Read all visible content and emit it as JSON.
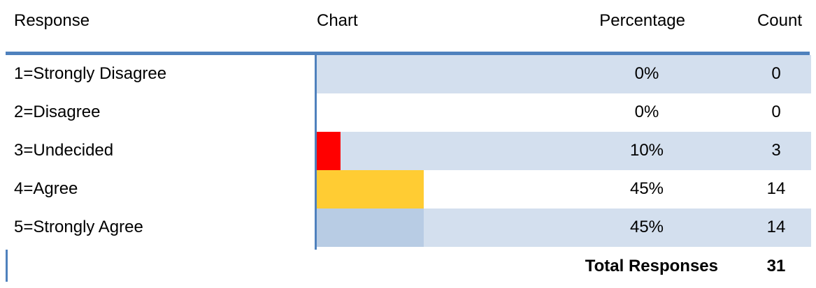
{
  "headers": {
    "response": "Response",
    "chart": "Chart",
    "percentage": "Percentage",
    "count": "Count"
  },
  "chart_data": {
    "type": "bar",
    "categories": [
      "1=Strongly Disagree",
      "2=Disagree",
      "3=Undecided",
      "4=Agree",
      "5=Strongly Agree"
    ],
    "percentages": [
      0,
      0,
      10,
      45,
      45
    ],
    "percentage_labels": [
      "0%",
      "0%",
      "10%",
      "45%",
      "45%"
    ],
    "counts": [
      0,
      0,
      3,
      14,
      14
    ],
    "bar_colors": [
      "#FF0000",
      "#FF0000",
      "#FF0000",
      "#FFCC33",
      "#B8CCE4"
    ],
    "row_band_colors": [
      "#D3DFEE",
      "#FFFFFF",
      "#D3DFEE",
      "#FFFFFF",
      "#D3DFEE"
    ],
    "xlim": [
      0,
      100
    ],
    "total_label": "Total Responses",
    "total_value": "31"
  }
}
